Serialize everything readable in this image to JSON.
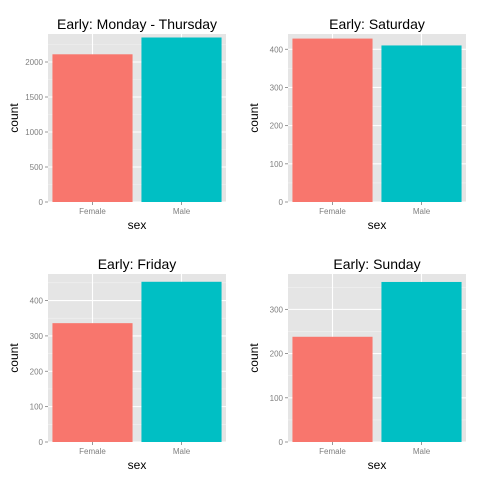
{
  "chart_data": [
    {
      "type": "bar",
      "title": "Early: Monday - Thursday",
      "xlabel": "sex",
      "ylabel": "count",
      "categories": [
        "Female",
        "Male"
      ],
      "values": [
        2110,
        2350
      ],
      "ylim": [
        0,
        2400
      ],
      "yticks": [
        0,
        500,
        1000,
        1500,
        2000
      ],
      "colors": [
        "#F8766D",
        "#00BFC4"
      ],
      "grid": true,
      "legend": "none"
    },
    {
      "type": "bar",
      "title": "Early: Saturday",
      "xlabel": "sex",
      "ylabel": "count",
      "categories": [
        "Female",
        "Male"
      ],
      "values": [
        428,
        410
      ],
      "ylim": [
        0,
        440
      ],
      "yticks": [
        0,
        100,
        200,
        300,
        400
      ],
      "colors": [
        "#F8766D",
        "#00BFC4"
      ],
      "grid": true,
      "legend": "none"
    },
    {
      "type": "bar",
      "title": "Early: Friday",
      "xlabel": "sex",
      "ylabel": "count",
      "categories": [
        "Female",
        "Male"
      ],
      "values": [
        336,
        453
      ],
      "ylim": [
        0,
        475
      ],
      "yticks": [
        0,
        100,
        200,
        300,
        400
      ],
      "colors": [
        "#F8766D",
        "#00BFC4"
      ],
      "grid": true,
      "legend": "none"
    },
    {
      "type": "bar",
      "title": "Early: Sunday",
      "xlabel": "sex",
      "ylabel": "count",
      "categories": [
        "Female",
        "Male"
      ],
      "values": [
        238,
        362
      ],
      "ylim": [
        0,
        380
      ],
      "yticks": [
        0,
        100,
        200,
        300
      ],
      "colors": [
        "#F8766D",
        "#00BFC4"
      ],
      "grid": true,
      "legend": "none"
    }
  ]
}
